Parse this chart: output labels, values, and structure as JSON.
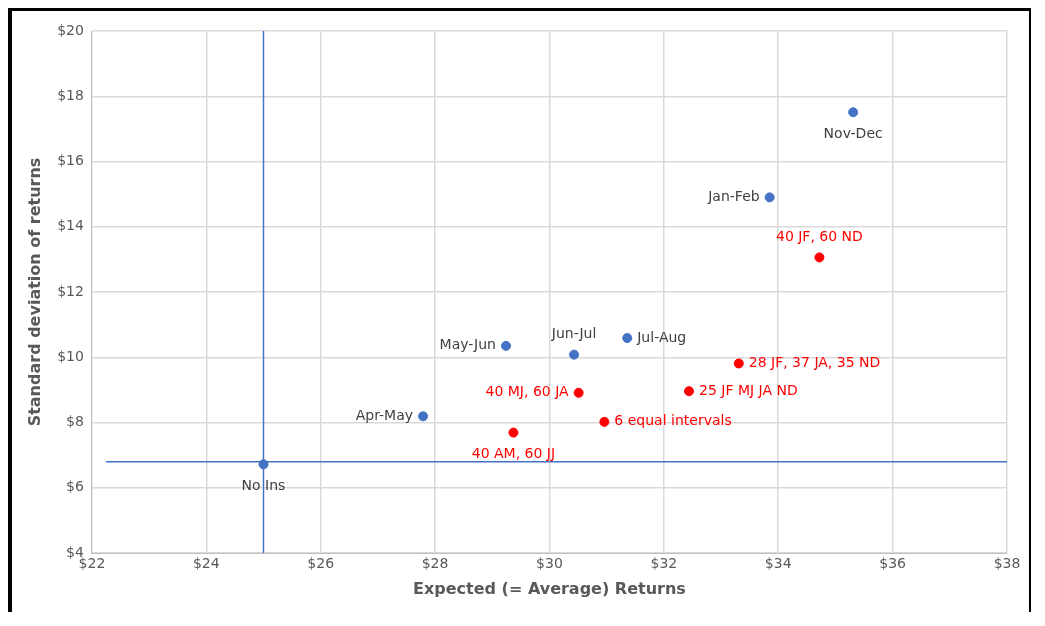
{
  "chart_data": {
    "type": "scatter",
    "xlabel": "Expected (= Average) Returns",
    "ylabel": "Standard deviation of returns",
    "xlim": [
      22,
      38
    ],
    "xticks": [
      {
        "value": 22,
        "label": "$22"
      },
      {
        "value": 24,
        "label": "$24"
      },
      {
        "value": 26,
        "label": "$26"
      },
      {
        "value": 28,
        "label": "$28"
      },
      {
        "value": 30,
        "label": "$30"
      },
      {
        "value": 32,
        "label": "$32"
      },
      {
        "value": 34,
        "label": "$34"
      },
      {
        "value": 36,
        "label": "$36"
      },
      {
        "value": 38,
        "label": "$38"
      }
    ],
    "ylim": [
      4,
      20
    ],
    "yticks": [
      {
        "value": 4,
        "label": "$4"
      },
      {
        "value": 6,
        "label": "$6"
      },
      {
        "value": 8,
        "label": "$8"
      },
      {
        "value": 10,
        "label": "$10"
      },
      {
        "value": 12,
        "label": "$12"
      },
      {
        "value": 14,
        "label": "$14"
      },
      {
        "value": 16,
        "label": "$16"
      },
      {
        "value": 18,
        "label": "$18"
      },
      {
        "value": 20,
        "label": "$20"
      }
    ],
    "grid": true,
    "marker": "circle",
    "series": [
      {
        "color": "#4472c4",
        "x": [
          25.0,
          27.79,
          29.24,
          30.43,
          31.36,
          33.85,
          35.31
        ],
        "values": [
          6.72,
          8.19,
          10.35,
          10.08,
          10.59,
          14.9,
          17.51
        ]
      },
      {
        "color": "#ff0000",
        "x": [
          34.72,
          33.31,
          30.51,
          32.44,
          30.96,
          29.37
        ],
        "values": [
          13.06,
          9.81,
          8.91,
          8.96,
          8.02,
          7.69
        ]
      }
    ],
    "ref_lines": [
      {
        "axis": "x",
        "value": 25,
        "color": "#4472c4"
      },
      {
        "axis": "y",
        "value": 6.8,
        "color": "#4472c4"
      }
    ],
    "annotations": [
      {
        "text": "No Ins",
        "x": 25.0,
        "y": 6.72
      },
      {
        "text": "Apr-May",
        "x": 27.79,
        "y": 8.19
      },
      {
        "text": "May-Jun",
        "x": 29.24,
        "y": 10.35
      },
      {
        "text": "Jun-Jul",
        "x": 30.43,
        "y": 10.08
      },
      {
        "text": "Jul-Aug",
        "x": 31.36,
        "y": 10.59
      },
      {
        "text": "Jan-Feb",
        "x": 33.85,
        "y": 14.9
      },
      {
        "text": "Nov-Dec",
        "x": 35.31,
        "y": 17.51
      },
      {
        "text": "40 JF, 60 ND",
        "x": 34.72,
        "y": 13.06
      },
      {
        "text": "28 JF, 37 JA, 35 ND",
        "x": 33.31,
        "y": 9.81
      },
      {
        "text": "40 MJ, 60 JA",
        "x": 30.51,
        "y": 8.91
      },
      {
        "text": "25 JF MJ JA ND",
        "x": 32.44,
        "y": 8.96
      },
      {
        "text": "6 equal intervals",
        "x": 30.96,
        "y": 8.02
      },
      {
        "text": "40 AM, 60 JJ",
        "x": 29.37,
        "y": 7.69
      }
    ]
  }
}
